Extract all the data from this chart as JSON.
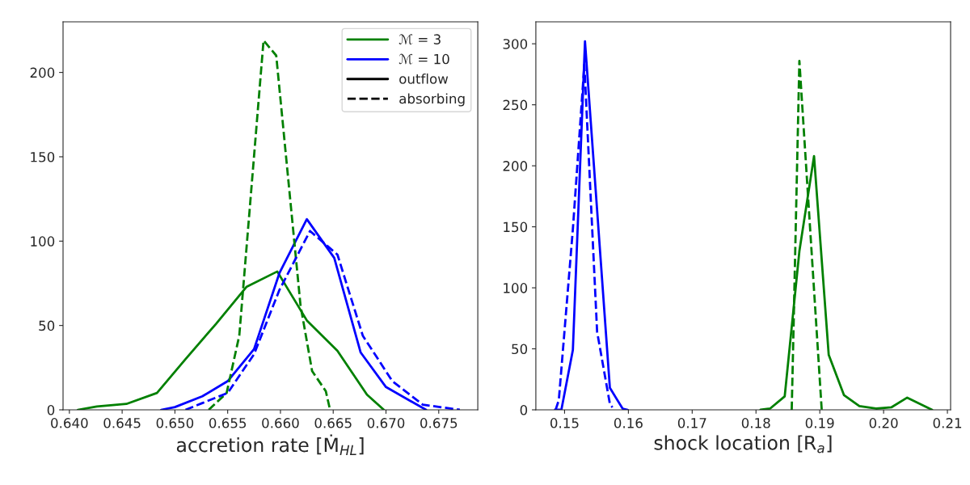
{
  "chart_data": [
    {
      "type": "line",
      "xlabel": "accretion rate [Ṁ$_{HL}$]",
      "xlim": [
        0.6394,
        0.6787
      ],
      "ylim": [
        0,
        230
      ],
      "xticks": [
        {
          "value": 0.64,
          "label": "0.640"
        },
        {
          "value": 0.645,
          "label": "0.645"
        },
        {
          "value": 0.65,
          "label": "0.650"
        },
        {
          "value": 0.655,
          "label": "0.655"
        },
        {
          "value": 0.66,
          "label": "0.660"
        },
        {
          "value": 0.665,
          "label": "0.665"
        },
        {
          "value": 0.67,
          "label": "0.670"
        },
        {
          "value": 0.675,
          "label": "0.675"
        }
      ],
      "yticks": [
        0,
        50,
        100,
        150,
        200
      ],
      "legend": "top right",
      "series": [
        {
          "name": "ℳ = 3",
          "color": "#008000",
          "line_style": "solid",
          "x": [
            0.6408,
            0.6426,
            0.6454,
            0.6483,
            0.651,
            0.6539,
            0.6568,
            0.6597,
            0.6625,
            0.6654,
            0.6682,
            0.6698
          ],
          "values": [
            0,
            2,
            3.5,
            10,
            30,
            51,
            73,
            82,
            53,
            35,
            9,
            0
          ]
        },
        {
          "name": "ℳ = 10",
          "color": "#0000ff",
          "line_style": "solid",
          "x": [
            0.6487,
            0.65,
            0.6526,
            0.655,
            0.6575,
            0.6599,
            0.6625,
            0.6651,
            0.6676,
            0.67,
            0.6738
          ],
          "values": [
            0,
            1.6,
            8,
            17,
            36,
            81,
            113,
            90,
            34,
            13.5,
            0
          ]
        },
        {
          "color": "#008000",
          "line_style": "dashed",
          "x": [
            0.6532,
            0.6549,
            0.6561,
            0.6584,
            0.6596,
            0.6619,
            0.663,
            0.6643,
            0.6647
          ],
          "values": [
            0,
            10,
            44,
            219,
            210,
            62,
            23,
            11,
            0
          ]
        },
        {
          "color": "#0000ff",
          "line_style": "dashed",
          "x": [
            0.651,
            0.6526,
            0.655,
            0.6575,
            0.6599,
            0.6628,
            0.6654,
            0.6678,
            0.6706,
            0.6735,
            0.677
          ],
          "values": [
            0,
            4,
            10,
            33,
            71,
            106,
            92,
            44,
            17,
            3,
            0
          ]
        },
        {
          "name": "outflow",
          "color": "#000000",
          "line_style": "solid"
        },
        {
          "name": "absorbing",
          "color": "#000000",
          "line_style": "dashed"
        }
      ]
    },
    {
      "type": "line",
      "xlabel": "shock location [R$_{a}$]",
      "xlim": [
        0.1455,
        0.2105
      ],
      "ylim": [
        0,
        318
      ],
      "xticks": [
        0.15,
        0.16,
        0.17,
        0.18,
        0.19,
        {
          "value": 0.2,
          "label": "0.20"
        },
        0.21
      ],
      "yticks": [
        0,
        50,
        100,
        150,
        200,
        250,
        300
      ],
      "series": [
        {
          "color": "#0000ff",
          "line_style": "solid",
          "x": [
            0.1485,
            0.1495,
            0.1513,
            0.1532,
            0.1571,
            0.1591,
            0.1599
          ],
          "values": [
            0,
            0,
            49,
            302,
            18,
            1,
            0
          ]
        },
        {
          "color": "#0000ff",
          "line_style": "dashed",
          "x": [
            0.1486,
            0.1491,
            0.1513,
            0.1531,
            0.1551,
            0.1571,
            0.1575
          ],
          "values": [
            0,
            8,
            148,
            283,
            64,
            5,
            2
          ]
        },
        {
          "color": "#008000",
          "line_style": "solid",
          "x": [
            0.1807,
            0.1822,
            0.1845,
            0.1868,
            0.1891,
            0.1914,
            0.1938,
            0.1962,
            0.1988,
            0.2012,
            0.2037,
            0.2076
          ],
          "values": [
            0,
            1,
            11,
            130,
            208,
            45,
            12,
            3,
            1,
            2,
            10,
            0
          ]
        },
        {
          "color": "#008000",
          "line_style": "dashed",
          "x": [
            0.1856,
            0.1859,
            0.1868,
            0.1903
          ],
          "values": [
            0,
            70,
            286,
            0
          ]
        }
      ]
    }
  ]
}
